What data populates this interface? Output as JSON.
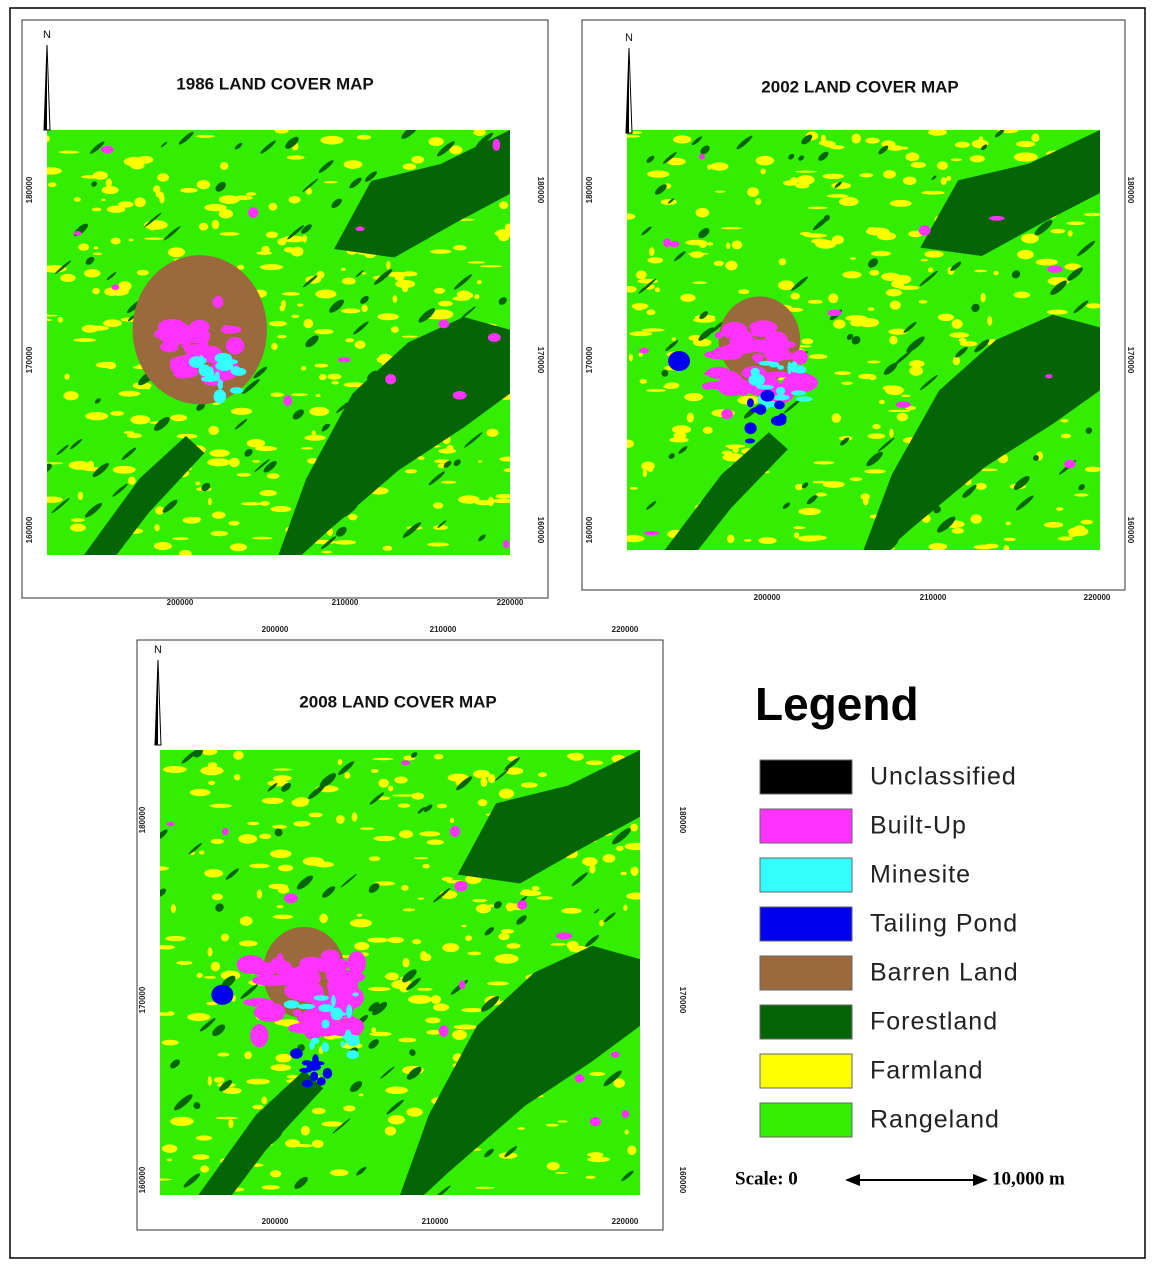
{
  "maps": [
    {
      "north": "N",
      "title": "1986 LAND COVER MAP",
      "x_labels_bottom": [
        "200000",
        "210000",
        "220000"
      ],
      "y_labels_left": [
        "180000",
        "170000",
        "160000"
      ],
      "y_labels_right": [
        "180000",
        "170000",
        "160000"
      ]
    },
    {
      "north": "N",
      "title": "2002 LAND COVER MAP",
      "x_labels_bottom": [
        "200000",
        "210000",
        "220000"
      ],
      "y_labels_left": [
        "180000",
        "170000",
        "160000"
      ],
      "y_labels_right": [
        "180000",
        "170000",
        "160000"
      ]
    },
    {
      "north": "N",
      "title": "2008 LAND COVER MAP",
      "x_labels_top": [
        "200000",
        "210000",
        "220000"
      ],
      "x_labels_bottom": [
        "200000",
        "210000",
        "220000"
      ],
      "y_labels_left": [
        "180000",
        "170000",
        "160000"
      ],
      "y_labels_right": [
        "180000",
        "170000",
        "160000"
      ]
    }
  ],
  "legend": {
    "title": "Legend",
    "items": [
      {
        "label": "Unclassified",
        "color": "#000000"
      },
      {
        "label": "Built-Up",
        "color": "#ff33ff"
      },
      {
        "label": "Minesite",
        "color": "#33ffff"
      },
      {
        "label": "Tailing Pond",
        "color": "#0000ee"
      },
      {
        "label": "Barren Land",
        "color": "#9a6a3c"
      },
      {
        "label": "Forestland",
        "color": "#056405"
      },
      {
        "label": "Farmland",
        "color": "#ffff00"
      },
      {
        "label": "Rangeland",
        "color": "#33ee00"
      }
    ]
  },
  "scale": {
    "start_label": "Scale: 0",
    "end_label": "10,000 m"
  }
}
